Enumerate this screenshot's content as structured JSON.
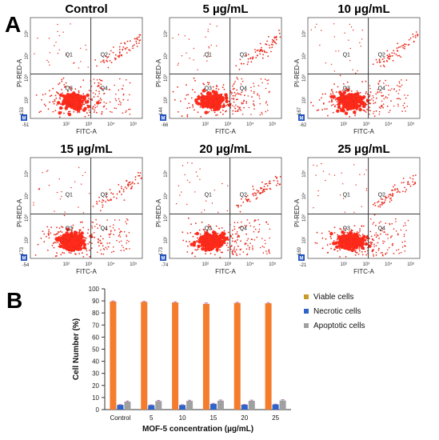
{
  "panel_a": {
    "letter": "A",
    "plots": [
      {
        "title": "Control",
        "y_axis_label": "PI-RED-A",
        "x_axis_label": "FITC-A",
        "x_min_label": "-51",
        "y_min_label": "-153",
        "quadrants": [
          "Q1",
          "Q2",
          "Q3",
          "Q4"
        ],
        "x_ticks": [
          "10²",
          "10³",
          "10⁴",
          "10⁵"
        ],
        "y_ticks": [
          "10²",
          "10³",
          "10⁴",
          "10⁵"
        ],
        "marker": "M"
      },
      {
        "title": "5 µg/mL",
        "y_axis_label": "PI-RED-A",
        "x_axis_label": "FITC-A",
        "x_min_label": "-66",
        "y_min_label": "-144",
        "quadrants": [
          "Q1",
          "Q2",
          "Q3",
          "Q4"
        ],
        "x_ticks": [
          "10²",
          "10³",
          "10⁴",
          "10⁵"
        ],
        "y_ticks": [
          "10²",
          "10³",
          "10⁴",
          "10⁵"
        ],
        "marker": "M"
      },
      {
        "title": "10 µg/mL",
        "y_axis_label": "PI-RED-A",
        "x_axis_label": "FITC-A",
        "x_min_label": "-62",
        "y_min_label": "-167",
        "quadrants": [
          "Q1",
          "Q2",
          "Q3",
          "Q4"
        ],
        "x_ticks": [
          "10²",
          "10³",
          "10⁴",
          "10⁵"
        ],
        "y_ticks": [
          "10²",
          "10³",
          "10⁴",
          "10⁵"
        ],
        "marker": "M"
      },
      {
        "title": "15 µg/mL",
        "y_axis_label": "PI-RED-A",
        "x_axis_label": "FITC-A",
        "x_min_label": "-54",
        "y_min_label": "-173",
        "quadrants": [
          "Q1",
          "Q2",
          "Q3",
          "Q4"
        ],
        "x_ticks": [
          "10²",
          "10³",
          "10⁴",
          "10⁵"
        ],
        "y_ticks": [
          "10²",
          "10³",
          "10⁴",
          "10⁵"
        ],
        "marker": "M"
      },
      {
        "title": "20 µg/mL",
        "y_axis_label": "PI-RED-A",
        "x_axis_label": "FITC-A",
        "x_min_label": "-74",
        "y_min_label": "-173",
        "quadrants": [
          "Q1",
          "Q2",
          "Q3",
          "Q4"
        ],
        "x_ticks": [
          "10²",
          "10³",
          "10⁴",
          "10⁵"
        ],
        "y_ticks": [
          "10²",
          "10³",
          "10⁴",
          "10⁵"
        ],
        "marker": "M"
      },
      {
        "title": "25 µg/mL",
        "y_axis_label": "PI-RED-A",
        "x_axis_label": "FITC-A",
        "x_min_label": "-21",
        "y_min_label": "-169",
        "quadrants": [
          "Q1",
          "Q2",
          "Q3",
          "Q4"
        ],
        "x_ticks": [
          "10²",
          "10³",
          "10⁴",
          "10⁵"
        ],
        "y_ticks": [
          "10²",
          "10³",
          "10⁴",
          "10⁵"
        ],
        "marker": "M"
      }
    ],
    "colors": {
      "dots": "#e8291c",
      "dense": "#ff2a1a",
      "quadrant_lines": "#3a3a3a",
      "marker": "#1f4fbf"
    }
  },
  "panel_b": {
    "letter": "B"
  },
  "chart_data": {
    "type": "bar",
    "categories": [
      "Control",
      "5",
      "10",
      "15",
      "20",
      "25"
    ],
    "series": [
      {
        "name": "Viable cells",
        "values": [
          89.5,
          89.2,
          88.7,
          87.6,
          88.3,
          88.0
        ],
        "errors": [
          0.5,
          0.5,
          0.6,
          0.7,
          0.5,
          0.6
        ],
        "color": "#f47c2c"
      },
      {
        "name": "Necrotic cells",
        "values": [
          3.9,
          3.7,
          3.8,
          4.8,
          4.1,
          4.3
        ],
        "errors": [
          0.3,
          0.3,
          0.3,
          0.4,
          0.3,
          0.3
        ],
        "color": "#2e63c9"
      },
      {
        "name": "Apoptotic cells",
        "values": [
          6.6,
          7.1,
          7.2,
          7.4,
          7.3,
          7.6
        ],
        "errors": [
          0.6,
          0.6,
          0.6,
          0.6,
          0.6,
          0.6
        ],
        "color": "#a0a0a0"
      }
    ],
    "xlabel": "MOF-5 concentration (µg/mL)",
    "ylabel": "Cell Number (%)",
    "ylim": [
      0,
      100
    ],
    "yticks": [
      0,
      10,
      20,
      30,
      40,
      50,
      60,
      70,
      80,
      90,
      100
    ],
    "legend_position": "right",
    "legend_swatch_color": "#c89a2a",
    "grid": false
  }
}
